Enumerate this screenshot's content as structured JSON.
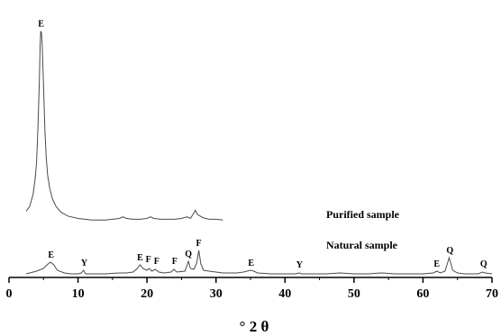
{
  "chart_data": {
    "type": "line",
    "xlabel": "° 2 θ",
    "ylabel": "",
    "xlim": [
      0,
      70
    ],
    "xticks": [
      0,
      10,
      20,
      30,
      40,
      50,
      60,
      70
    ],
    "grid": false,
    "legend": "none",
    "line_color": "#4a4a4a",
    "series": [
      {
        "name": "Purified sample",
        "points": [
          [
            2.5,
            0.34
          ],
          [
            3.0,
            0.4
          ],
          [
            3.5,
            0.55
          ],
          [
            3.8,
            0.75
          ],
          [
            4.0,
            0.95
          ],
          [
            4.2,
            1.4
          ],
          [
            4.4,
            1.95
          ],
          [
            4.5,
            2.38
          ],
          [
            4.6,
            2.56
          ],
          [
            4.7,
            2.54
          ],
          [
            4.8,
            2.4
          ],
          [
            5.0,
            1.9
          ],
          [
            5.2,
            1.35
          ],
          [
            5.4,
            1.0
          ],
          [
            5.6,
            0.78
          ],
          [
            5.9,
            0.62
          ],
          [
            6.3,
            0.49
          ],
          [
            6.8,
            0.4
          ],
          [
            7.5,
            0.33
          ],
          [
            8.5,
            0.28
          ],
          [
            10,
            0.25
          ],
          [
            12,
            0.23
          ],
          [
            14,
            0.23
          ],
          [
            15,
            0.24
          ],
          [
            16,
            0.25
          ],
          [
            16.5,
            0.27
          ],
          [
            17,
            0.25
          ],
          [
            18,
            0.24
          ],
          [
            19,
            0.24
          ],
          [
            20,
            0.25
          ],
          [
            20.5,
            0.27
          ],
          [
            21,
            0.25
          ],
          [
            22,
            0.24
          ],
          [
            23,
            0.24
          ],
          [
            24,
            0.24
          ],
          [
            25,
            0.25
          ],
          [
            25.8,
            0.27
          ],
          [
            26.3,
            0.25
          ],
          [
            26.8,
            0.32
          ],
          [
            27.0,
            0.35
          ],
          [
            27.3,
            0.3
          ],
          [
            27.7,
            0.28
          ],
          [
            28.1,
            0.26
          ],
          [
            29,
            0.24
          ],
          [
            30,
            0.24
          ],
          [
            31,
            0.23
          ]
        ],
        "peaks": [
          {
            "label": "E",
            "x": 4.65,
            "y": 2.56
          }
        ]
      },
      {
        "name": "Natural sample",
        "points": [
          [
            2.5,
            0.04
          ],
          [
            3,
            0.05
          ],
          [
            4,
            0.07
          ],
          [
            5,
            0.1
          ],
          [
            5.5,
            0.14
          ],
          [
            6,
            0.17
          ],
          [
            6.5,
            0.14
          ],
          [
            7,
            0.08
          ],
          [
            8,
            0.05
          ],
          [
            9,
            0.04
          ],
          [
            10,
            0.04
          ],
          [
            10.5,
            0.05
          ],
          [
            10.8,
            0.08
          ],
          [
            11.1,
            0.04
          ],
          [
            12,
            0.04
          ],
          [
            14,
            0.04
          ],
          [
            16,
            0.05
          ],
          [
            17,
            0.05
          ],
          [
            18,
            0.06
          ],
          [
            18.6,
            0.1
          ],
          [
            19.0,
            0.14
          ],
          [
            19.4,
            0.1
          ],
          [
            20,
            0.08
          ],
          [
            20.3,
            0.1
          ],
          [
            20.7,
            0.07
          ],
          [
            21.2,
            0.09
          ],
          [
            21.7,
            0.06
          ],
          [
            22.5,
            0.05
          ],
          [
            23.5,
            0.06
          ],
          [
            23.9,
            0.09
          ],
          [
            24.3,
            0.06
          ],
          [
            25.5,
            0.07
          ],
          [
            26.0,
            0.18
          ],
          [
            26.3,
            0.1
          ],
          [
            26.8,
            0.09
          ],
          [
            27.2,
            0.16
          ],
          [
            27.5,
            0.3
          ],
          [
            27.8,
            0.15
          ],
          [
            28.2,
            0.08
          ],
          [
            29,
            0.07
          ],
          [
            30,
            0.06
          ],
          [
            31,
            0.05
          ],
          [
            32,
            0.05
          ],
          [
            33,
            0.05
          ],
          [
            34,
            0.06
          ],
          [
            35,
            0.08
          ],
          [
            35.5,
            0.07
          ],
          [
            36,
            0.05
          ],
          [
            38,
            0.04
          ],
          [
            40,
            0.04
          ],
          [
            41.5,
            0.04
          ],
          [
            42.0,
            0.05
          ],
          [
            42.4,
            0.04
          ],
          [
            44,
            0.04
          ],
          [
            46,
            0.04
          ],
          [
            48,
            0.05
          ],
          [
            50,
            0.04
          ],
          [
            52,
            0.04
          ],
          [
            54,
            0.05
          ],
          [
            56,
            0.04
          ],
          [
            58,
            0.04
          ],
          [
            60,
            0.04
          ],
          [
            61.5,
            0.05
          ],
          [
            62.0,
            0.07
          ],
          [
            62.5,
            0.05
          ],
          [
            63.2,
            0.07
          ],
          [
            63.8,
            0.22
          ],
          [
            64.3,
            0.08
          ],
          [
            65,
            0.05
          ],
          [
            66,
            0.04
          ],
          [
            67,
            0.04
          ],
          [
            68,
            0.04
          ],
          [
            68.6,
            0.06
          ],
          [
            69,
            0.05
          ],
          [
            70,
            0.04
          ]
        ],
        "peaks": [
          {
            "label": "E",
            "x": 6.1,
            "y": 0.17
          },
          {
            "label": "Y",
            "x": 10.9,
            "y": 0.08
          },
          {
            "label": "E",
            "x": 19.0,
            "y": 0.14
          },
          {
            "label": "F",
            "x": 20.2,
            "y": 0.12
          },
          {
            "label": "F",
            "x": 21.4,
            "y": 0.1
          },
          {
            "label": "F",
            "x": 24.0,
            "y": 0.1
          },
          {
            "label": "Q",
            "x": 26.0,
            "y": 0.18
          },
          {
            "label": "F",
            "x": 27.5,
            "y": 0.3
          },
          {
            "label": "E",
            "x": 35.1,
            "y": 0.08
          },
          {
            "label": "Y",
            "x": 42.1,
            "y": 0.06
          },
          {
            "label": "E",
            "x": 62.0,
            "y": 0.07
          },
          {
            "label": "Q",
            "x": 63.9,
            "y": 0.22
          },
          {
            "label": "Q",
            "x": 68.8,
            "y": 0.07
          }
        ]
      }
    ]
  }
}
